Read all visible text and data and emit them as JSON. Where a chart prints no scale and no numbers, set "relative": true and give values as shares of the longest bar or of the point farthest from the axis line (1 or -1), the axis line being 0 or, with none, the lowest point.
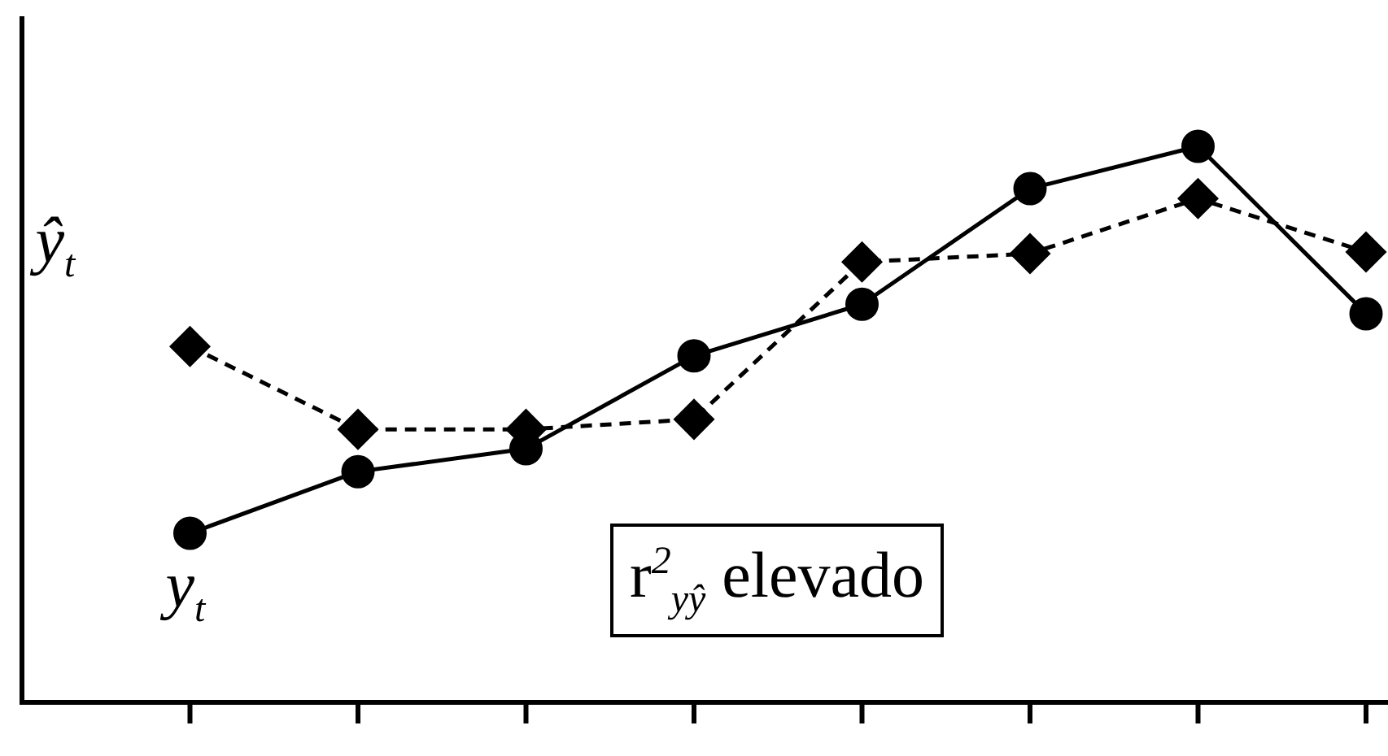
{
  "chart_data": {
    "type": "line",
    "relative": true,
    "categories": [
      null,
      null,
      null,
      null,
      null,
      null,
      null,
      null
    ],
    "legend": false,
    "series": [
      {
        "name": "y$_{t}$",
        "color": "#000000",
        "marker": "circle",
        "line_style": "solid",
        "values": [
          0.304,
          0.415,
          0.456,
          0.623,
          0.716,
          0.924,
          1,
          0.699
        ]
      },
      {
        "name": "ŷ$_{t}$",
        "color": "#000000",
        "marker": "diamond",
        "line_style": "dashed",
        "values": [
          0.64,
          0.491,
          0.491,
          0.509,
          0.792,
          0.807,
          0.906,
          0.81
        ]
      }
    ],
    "annotations": [
      "r$^{2}$$_{yŷ}$ elevado"
    ]
  }
}
